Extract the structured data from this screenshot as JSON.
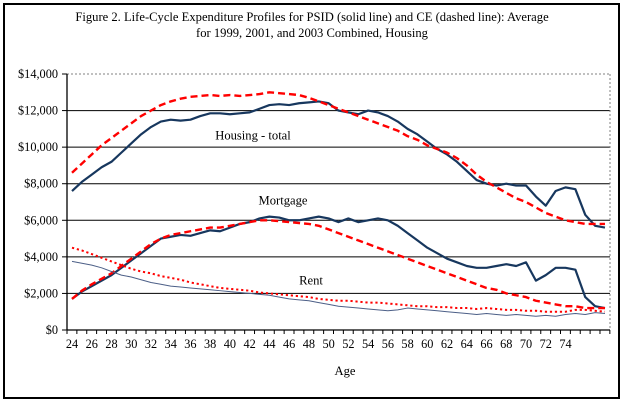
{
  "figure": {
    "title_line1": "Figure 2. Life-Cycle Expenditure Profiles for PSID (solid line) and CE (dashed line): Average",
    "title_line2": "for 1999, 2001, and 2003 Combined, Housing"
  },
  "chart_data": {
    "type": "line",
    "title": "Figure 2. Life-Cycle Expenditure Profiles for PSID (solid line) and CE (dashed line): Average for 1999, 2001, and 2003 Combined, Housing",
    "xlabel": "Age",
    "ylabel": "",
    "x": [
      24,
      25,
      26,
      27,
      28,
      29,
      30,
      31,
      32,
      33,
      34,
      35,
      36,
      37,
      38,
      39,
      40,
      41,
      42,
      43,
      44,
      45,
      46,
      47,
      48,
      49,
      50,
      51,
      52,
      53,
      54,
      55,
      56,
      57,
      58,
      59,
      60,
      61,
      62,
      63,
      64,
      65,
      66,
      67,
      68,
      69,
      70,
      71,
      72,
      73,
      74,
      75,
      76,
      77,
      78
    ],
    "xlim": [
      24,
      78
    ],
    "ylim": [
      0,
      14000
    ],
    "grid": "horizontal",
    "legend_position": "none",
    "y_ticks": [
      0,
      2000,
      4000,
      6000,
      8000,
      10000,
      12000,
      14000
    ],
    "y_tick_labels": [
      "$0",
      "$2,000",
      "$4,000",
      "$6,000",
      "$8,000",
      "$10,000",
      "$12,000",
      "$14,000"
    ],
    "x_tick_labels": [
      "24",
      "26",
      "28",
      "30",
      "32",
      "34",
      "36",
      "38",
      "40",
      "42",
      "44",
      "46",
      "48",
      "50",
      "52",
      "54",
      "56",
      "58",
      "60",
      "62",
      "64",
      "66",
      "68",
      "70",
      "72",
      "74"
    ],
    "colors": {
      "psid_navy": "#17375E",
      "rent_psid_thin": "#4C5F87",
      "ce_red": "#FF0000"
    },
    "series": [
      {
        "name": "Housing total - PSID",
        "line": "solid",
        "color": "#17375E",
        "width": 2.2,
        "values": [
          7600,
          8100,
          8500,
          8900,
          9200,
          9700,
          10200,
          10700,
          11100,
          11400,
          11500,
          11450,
          11500,
          11700,
          11850,
          11850,
          11800,
          11850,
          11900,
          12100,
          12300,
          12350,
          12300,
          12400,
          12450,
          12500,
          12400,
          12000,
          11900,
          11800,
          12000,
          11900,
          11700,
          11400,
          11000,
          10700,
          10300,
          9900,
          9600,
          9200,
          8700,
          8200,
          8000,
          7900,
          8000,
          7900,
          7900,
          7300,
          6800,
          7600,
          7800,
          7700,
          6300,
          5700,
          5600
        ]
      },
      {
        "name": "Housing total - CE",
        "line": "dashed",
        "color": "#FF0000",
        "width": 2.4,
        "values": [
          8600,
          9100,
          9600,
          10100,
          10500,
          10900,
          11300,
          11700,
          12000,
          12300,
          12500,
          12650,
          12750,
          12800,
          12850,
          12800,
          12850,
          12800,
          12850,
          12900,
          13000,
          12950,
          12900,
          12850,
          12700,
          12500,
          12300,
          12100,
          11900,
          11700,
          11500,
          11300,
          11100,
          10900,
          10600,
          10400,
          10100,
          9900,
          9700,
          9400,
          9000,
          8500,
          8100,
          7800,
          7500,
          7200,
          7000,
          6700,
          6400,
          6200,
          6000,
          5900,
          5800,
          5800,
          5800
        ]
      },
      {
        "name": "Mortgage - PSID",
        "line": "solid",
        "color": "#17375E",
        "width": 2.2,
        "values": [
          1700,
          2100,
          2400,
          2700,
          3000,
          3400,
          3800,
          4200,
          4600,
          5000,
          5100,
          5200,
          5150,
          5300,
          5450,
          5400,
          5600,
          5800,
          5900,
          6100,
          6200,
          6150,
          6000,
          6000,
          6100,
          6200,
          6100,
          5900,
          6100,
          5900,
          6000,
          6100,
          6000,
          5700,
          5300,
          4900,
          4500,
          4200,
          3900,
          3700,
          3500,
          3400,
          3400,
          3500,
          3600,
          3500,
          3700,
          2700,
          3000,
          3400,
          3400,
          3300,
          1800,
          1300,
          1200
        ]
      },
      {
        "name": "Mortgage - CE",
        "line": "dashed",
        "color": "#FF0000",
        "width": 2.4,
        "values": [
          1700,
          2150,
          2500,
          2800,
          3100,
          3500,
          3900,
          4300,
          4700,
          5000,
          5200,
          5300,
          5400,
          5500,
          5600,
          5600,
          5700,
          5800,
          5900,
          6000,
          6000,
          5950,
          5900,
          5850,
          5800,
          5700,
          5500,
          5300,
          5100,
          4900,
          4700,
          4500,
          4300,
          4100,
          3900,
          3700,
          3500,
          3300,
          3100,
          2900,
          2700,
          2500,
          2300,
          2200,
          2000,
          1900,
          1800,
          1600,
          1500,
          1400,
          1300,
          1300,
          1200,
          1200,
          1200
        ]
      },
      {
        "name": "Rent - PSID",
        "line": "solid-thin",
        "color": "#4C5F87",
        "width": 1,
        "values": [
          3750,
          3650,
          3550,
          3400,
          3200,
          3000,
          2900,
          2750,
          2600,
          2500,
          2400,
          2350,
          2300,
          2250,
          2200,
          2150,
          2100,
          2050,
          2000,
          1950,
          1900,
          1800,
          1700,
          1650,
          1600,
          1500,
          1400,
          1300,
          1250,
          1200,
          1150,
          1100,
          1050,
          1100,
          1200,
          1150,
          1100,
          1050,
          1000,
          950,
          900,
          850,
          900,
          850,
          800,
          850,
          800,
          750,
          800,
          750,
          850,
          900,
          850,
          950,
          900
        ]
      },
      {
        "name": "Rent - CE",
        "line": "dotted",
        "color": "#FF0000",
        "width": 2,
        "values": [
          4500,
          4350,
          4150,
          3950,
          3750,
          3550,
          3350,
          3200,
          3100,
          2950,
          2850,
          2750,
          2600,
          2500,
          2400,
          2300,
          2250,
          2200,
          2150,
          2050,
          2000,
          1950,
          1900,
          1850,
          1800,
          1700,
          1650,
          1600,
          1600,
          1550,
          1500,
          1500,
          1450,
          1400,
          1350,
          1300,
          1300,
          1250,
          1250,
          1200,
          1200,
          1150,
          1200,
          1150,
          1100,
          1100,
          1050,
          1050,
          1000,
          1000,
          1000,
          1100,
          1100,
          1050,
          1000
        ]
      }
    ],
    "annotations": [
      {
        "text": "Housing - total"
      },
      {
        "text": "Mortgage"
      },
      {
        "text": "Rent"
      }
    ]
  }
}
